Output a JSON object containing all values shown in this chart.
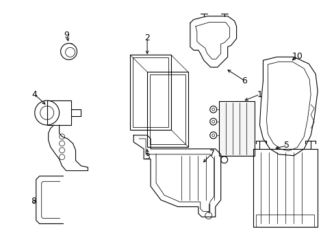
{
  "bg_color": "#ffffff",
  "line_color": "#000000",
  "lw": 0.8,
  "figsize": [
    4.89,
    3.6
  ],
  "dpi": 100
}
